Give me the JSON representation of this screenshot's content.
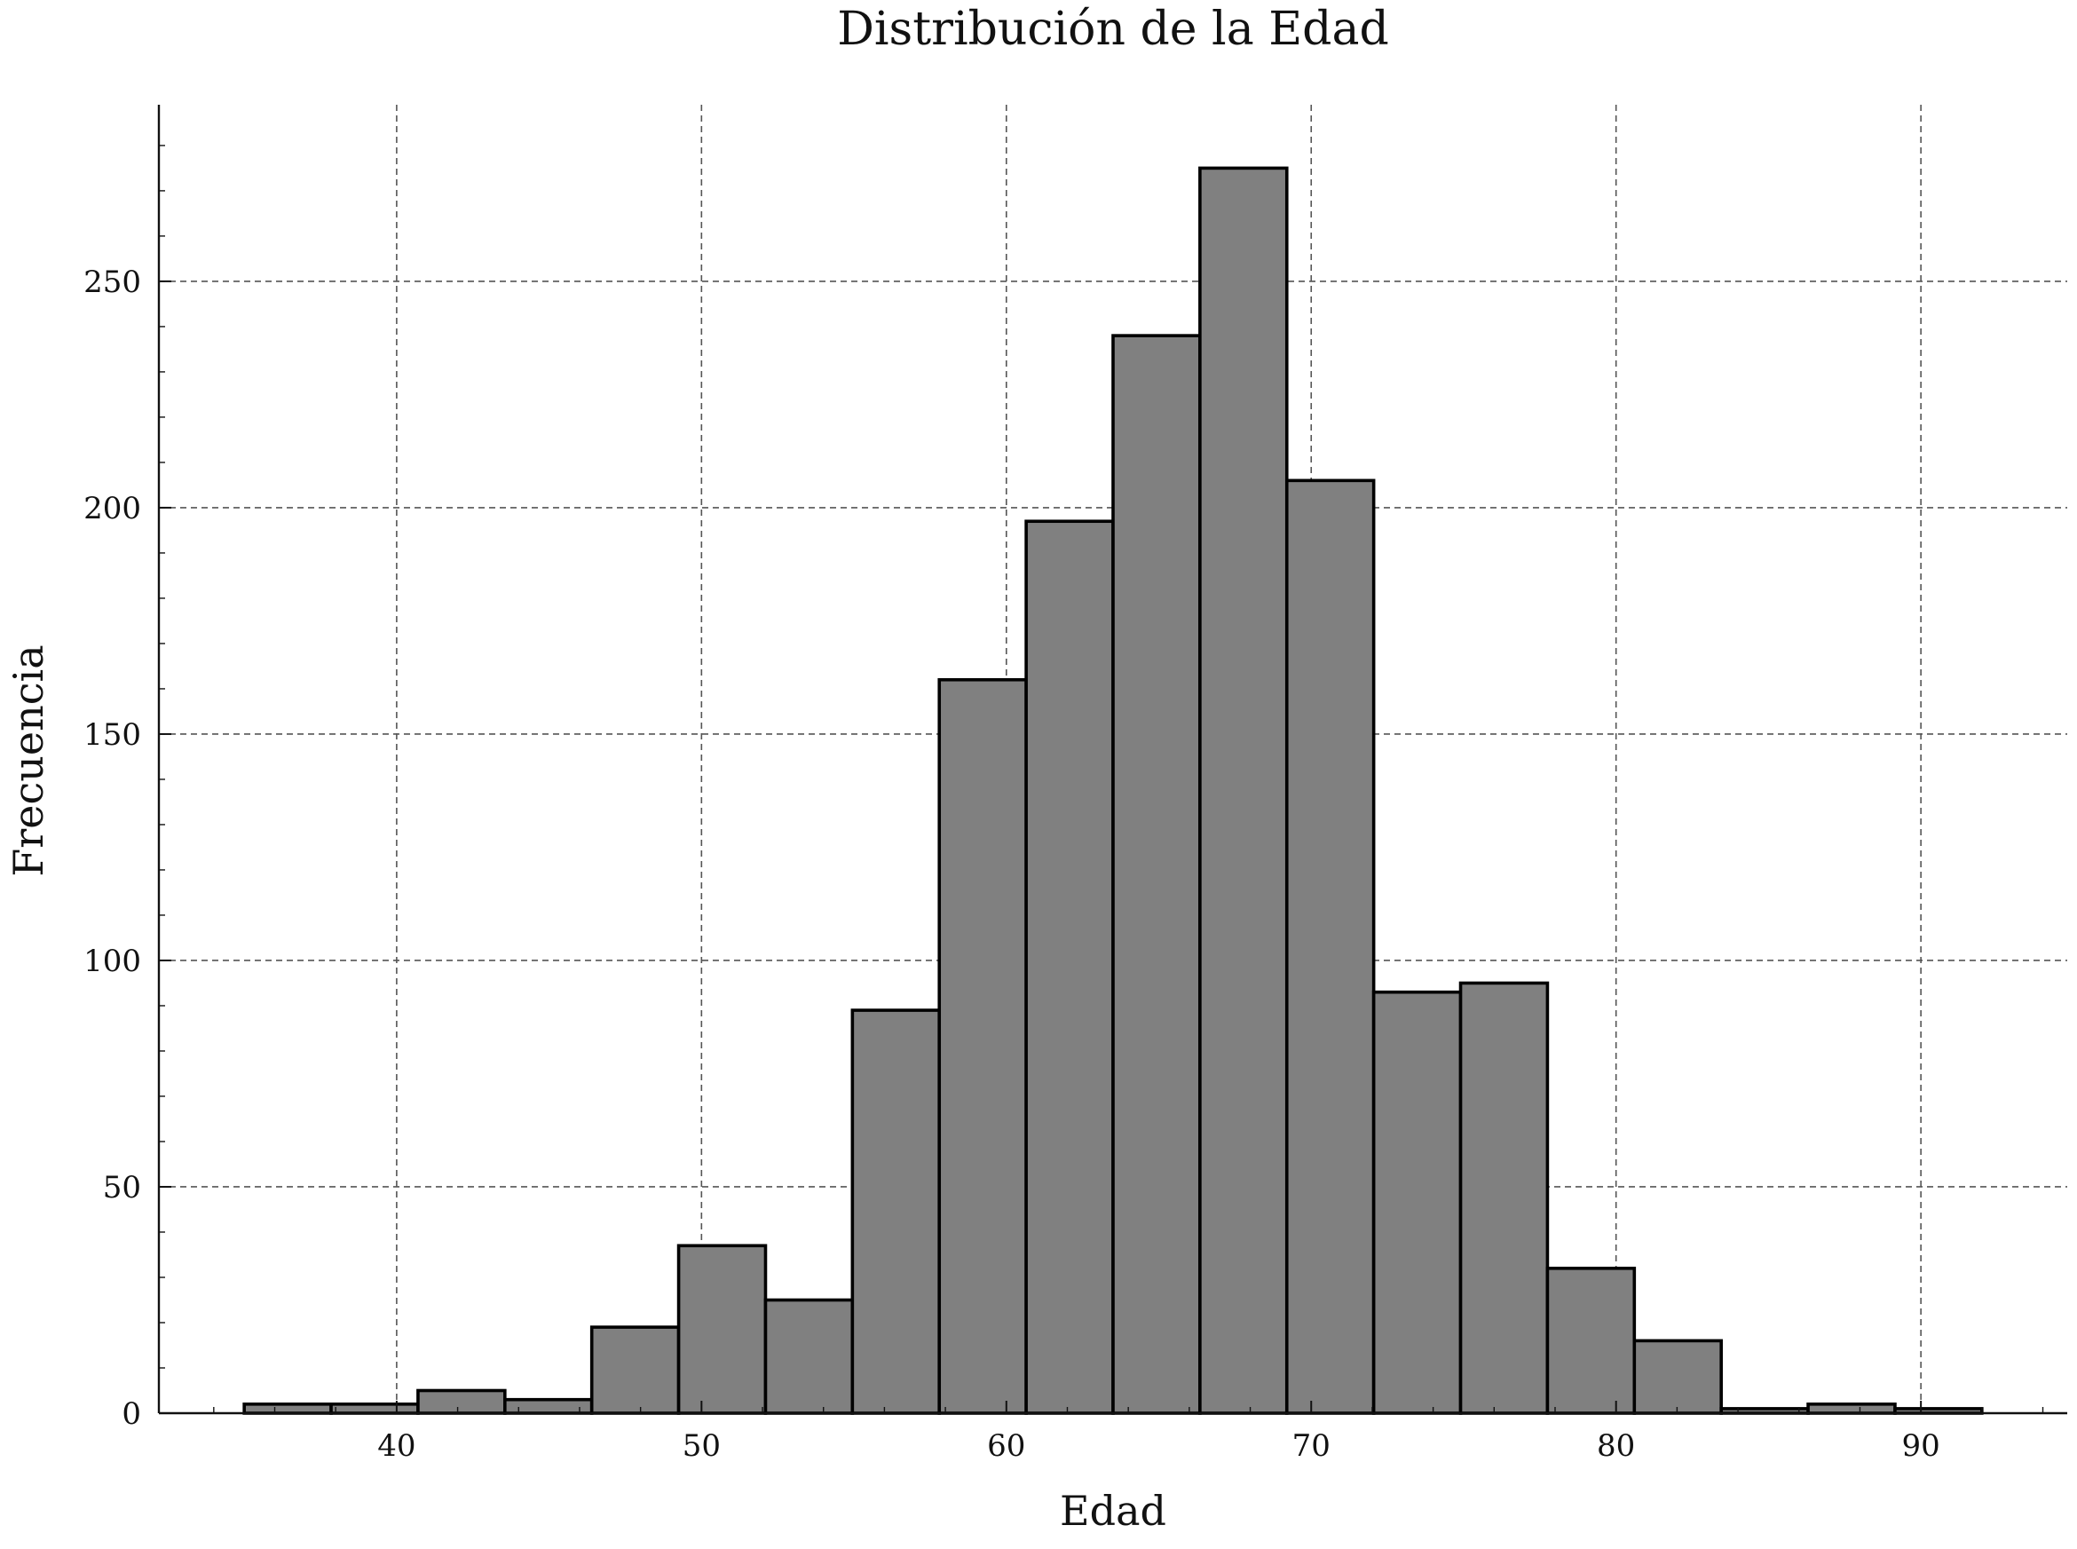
{
  "chart_data": {
    "type": "bar",
    "title": "Distribución de la Edad",
    "xlabel": "Edad",
    "ylabel": "Frecuencia",
    "bin_edges": [
      35.0,
      37.85,
      40.7,
      43.55,
      46.4,
      49.25,
      52.1,
      54.95,
      57.8,
      60.65,
      63.5,
      66.35,
      69.2,
      72.05,
      74.9,
      77.75,
      80.6,
      83.45,
      86.3,
      89.15,
      92.0
    ],
    "values": [
      2,
      2,
      5,
      3,
      19,
      37,
      25,
      89,
      162,
      197,
      238,
      275,
      206,
      93,
      95,
      32,
      16,
      1,
      2,
      1
    ],
    "xlim": [
      32.2,
      94.8
    ],
    "ylim": [
      0,
      289
    ],
    "xticks": [
      40,
      50,
      60,
      70,
      80,
      90
    ],
    "xtick_labels": [
      "40",
      "50",
      "60",
      "70",
      "80",
      "90"
    ],
    "yticks": [
      0,
      50,
      100,
      150,
      200,
      250
    ],
    "ytick_labels": [
      "0",
      "50",
      "100",
      "150",
      "200",
      "250"
    ],
    "grid": true,
    "bar_color": "#808080",
    "edge_color": "#000000"
  }
}
